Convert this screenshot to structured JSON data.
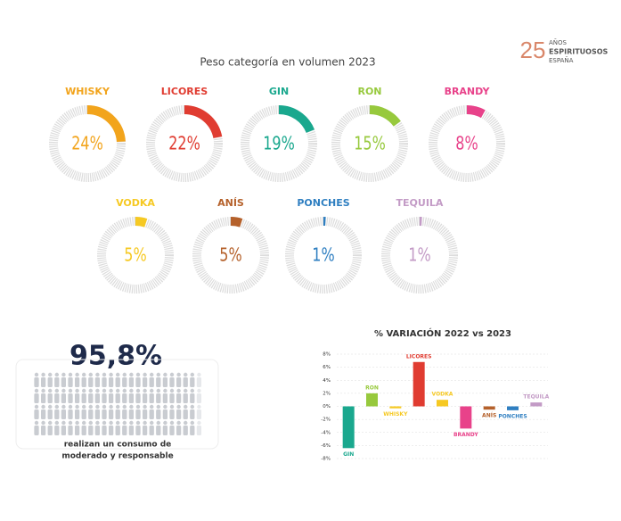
{
  "logo": {
    "number": "25",
    "lines": [
      "AÑOS",
      "ESPIRITUOSOS",
      "ESPAÑA"
    ]
  },
  "chart_data": [
    {
      "type": "donut",
      "title": "Peso categoría en volumen 2023",
      "categories": [
        "WHISKY",
        "LICORES",
        "GIN",
        "RON",
        "BRANDY",
        "VODKA",
        "ANÍS",
        "PONCHES",
        "TEQUILA"
      ],
      "values": [
        24,
        22,
        19,
        15,
        8,
        5,
        5,
        1,
        1
      ],
      "value_labels": [
        "24%",
        "22%",
        "19%",
        "15%",
        "8%",
        "5%",
        "5%",
        "1%",
        "1%"
      ],
      "colors": [
        "#f2a41c",
        "#e03c31",
        "#1aa88e",
        "#97c93d",
        "#e8428a",
        "#f6c923",
        "#b5612b",
        "#2f7fc1",
        "#c39bc6"
      ]
    },
    {
      "type": "pictogram",
      "values": [
        95.8
      ],
      "value_labels": [
        "95,8%"
      ],
      "caption": [
        "realizan un consumo de",
        "moderado y responsable"
      ]
    },
    {
      "type": "bar",
      "title": "% VARIACIÓN 2022 vs 2023",
      "categories": [
        "GIN",
        "RON",
        "WHISKY",
        "LICORES",
        "VODKA",
        "BRANDY",
        "ANÍS",
        "PONCHES",
        "TEQUILA"
      ],
      "values": [
        -6.4,
        2,
        -0.3,
        6.8,
        1,
        -3.4,
        -0.5,
        -0.6,
        0.6
      ],
      "colors": [
        "#1aa88e",
        "#97c93d",
        "#f6c923",
        "#e03c31",
        "#f6c923",
        "#e8428a",
        "#b5612b",
        "#2f7fc1",
        "#c39bc6"
      ],
      "ylim": [
        -8,
        8
      ],
      "yticks": [
        {
          "value": 8,
          "label": "8%"
        },
        {
          "value": 6,
          "label": "6%"
        },
        {
          "value": 4,
          "label": "4%"
        },
        {
          "value": 2,
          "label": "2%"
        },
        {
          "value": 0,
          "label": "0%"
        },
        {
          "value": -2,
          "label": "-2%"
        },
        {
          "value": -4,
          "label": "-4%"
        },
        {
          "value": -6,
          "label": "-6%"
        },
        {
          "value": -8,
          "label": "-8%"
        }
      ],
      "grid": true
    }
  ]
}
